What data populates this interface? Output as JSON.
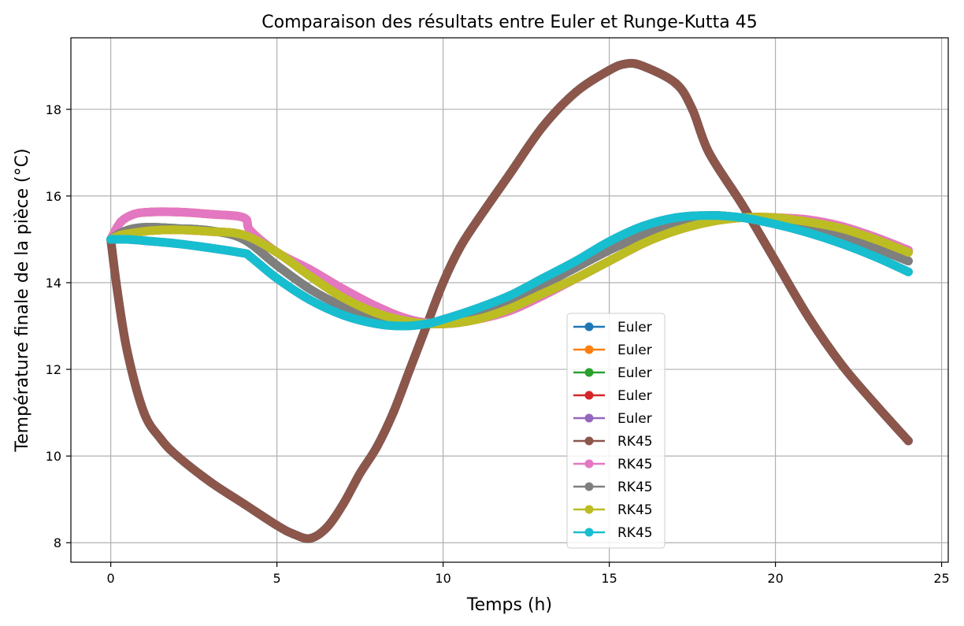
{
  "chart_data": {
    "type": "line",
    "title": "Comparaison des résultats entre Euler et Runge-Kutta 45",
    "xlabel": "Temps (h)",
    "ylabel": "Température finale de la pièce (°C)",
    "xlim": [
      -1.2,
      25.2
    ],
    "ylim": [
      7.55,
      19.65
    ],
    "xticks": [
      0,
      5,
      10,
      15,
      20,
      25
    ],
    "yticks": [
      8,
      10,
      12,
      14,
      16,
      18
    ],
    "grid": true,
    "legend_position": "lower center",
    "series": [
      {
        "name": "Euler",
        "color": "#1f77b4",
        "x": [
          0,
          0.2,
          0.5,
          1,
          1.5,
          2,
          3,
          4,
          5,
          5.5,
          6,
          6.5,
          7,
          7.5,
          8,
          8.5,
          9,
          9.5,
          10,
          10.5,
          11,
          12,
          13,
          14,
          15,
          15.5,
          16,
          17,
          17.5,
          18,
          19,
          20,
          21,
          22,
          23,
          24
        ],
        "y": [
          15.0,
          13.8,
          12.4,
          11.0,
          10.4,
          10.0,
          9.4,
          8.9,
          8.4,
          8.2,
          8.1,
          8.35,
          8.9,
          9.6,
          10.2,
          11.0,
          12.0,
          13.0,
          14.0,
          14.8,
          15.4,
          16.5,
          17.6,
          18.4,
          18.9,
          19.05,
          19.0,
          18.6,
          18.0,
          17.0,
          15.8,
          14.5,
          13.2,
          12.1,
          11.2,
          10.35
        ]
      },
      {
        "name": "Euler",
        "color": "#ff7f0e",
        "x": [
          0,
          0.3,
          0.7,
          1.2,
          2,
          3,
          4,
          4.2,
          5,
          6,
          7,
          8,
          9,
          10,
          11,
          12,
          13,
          14,
          15,
          16,
          17,
          18,
          19,
          20,
          21,
          22,
          23,
          24
        ],
        "y": [
          15.0,
          15.4,
          15.58,
          15.63,
          15.63,
          15.58,
          15.5,
          15.2,
          14.7,
          14.3,
          13.85,
          13.45,
          13.15,
          13.05,
          13.15,
          13.35,
          13.7,
          14.1,
          14.5,
          14.9,
          15.25,
          15.45,
          15.5,
          15.5,
          15.45,
          15.3,
          15.05,
          14.75
        ]
      },
      {
        "name": "Euler",
        "color": "#2ca02c",
        "x": [
          0,
          0.3,
          0.7,
          1.2,
          2,
          3,
          4,
          5,
          6,
          7,
          8,
          9,
          10,
          11,
          12,
          13,
          14,
          15,
          16,
          17,
          18,
          19,
          20,
          21,
          22,
          23,
          24
        ],
        "y": [
          15.0,
          15.15,
          15.25,
          15.28,
          15.25,
          15.2,
          15.0,
          14.4,
          13.85,
          13.45,
          13.2,
          13.05,
          13.1,
          13.3,
          13.6,
          13.95,
          14.35,
          14.75,
          15.1,
          15.4,
          15.55,
          15.5,
          15.45,
          15.3,
          15.05,
          14.8,
          14.5
        ]
      },
      {
        "name": "Euler",
        "color": "#d62728",
        "x": [
          0,
          0.3,
          0.7,
          1.2,
          2,
          3,
          4,
          5,
          6,
          7,
          8,
          9,
          10,
          11,
          12,
          13,
          14,
          15,
          16,
          17,
          18,
          19,
          20,
          21,
          22,
          23,
          24
        ],
        "y": [
          15.0,
          15.1,
          15.15,
          15.2,
          15.22,
          15.18,
          15.1,
          14.7,
          14.15,
          13.65,
          13.3,
          13.1,
          13.05,
          13.15,
          13.4,
          13.75,
          14.1,
          14.5,
          14.9,
          15.2,
          15.4,
          15.5,
          15.5,
          15.4,
          15.25,
          15.0,
          14.7
        ]
      },
      {
        "name": "Euler",
        "color": "#9467bd",
        "x": [
          0,
          0.5,
          1,
          2,
          3,
          4,
          4.2,
          5,
          6,
          7,
          8,
          8.8,
          9.5,
          10,
          11,
          12,
          13,
          14,
          15,
          16,
          17,
          18,
          19,
          20,
          21,
          22,
          23,
          24
        ],
        "y": [
          15.0,
          15.0,
          14.97,
          14.9,
          14.8,
          14.68,
          14.6,
          14.1,
          13.6,
          13.25,
          13.05,
          13.0,
          13.05,
          13.15,
          13.4,
          13.7,
          14.1,
          14.5,
          14.95,
          15.3,
          15.5,
          15.55,
          15.5,
          15.35,
          15.15,
          14.9,
          14.6,
          14.25
        ]
      },
      {
        "name": "RK45",
        "color": "#8c564b",
        "x": [
          0,
          0.2,
          0.5,
          1,
          1.5,
          2,
          3,
          4,
          5,
          5.5,
          6,
          6.5,
          7,
          7.5,
          8,
          8.5,
          9,
          9.5,
          10,
          10.5,
          11,
          12,
          13,
          14,
          15,
          15.5,
          16,
          17,
          17.5,
          18,
          19,
          20,
          21,
          22,
          23,
          24
        ],
        "y": [
          15.0,
          13.8,
          12.4,
          11.0,
          10.4,
          10.0,
          9.4,
          8.9,
          8.4,
          8.2,
          8.1,
          8.35,
          8.9,
          9.6,
          10.2,
          11.0,
          12.0,
          13.0,
          14.0,
          14.8,
          15.4,
          16.5,
          17.6,
          18.4,
          18.9,
          19.05,
          19.0,
          18.6,
          18.0,
          17.0,
          15.8,
          14.5,
          13.2,
          12.1,
          11.2,
          10.35
        ]
      },
      {
        "name": "RK45",
        "color": "#e377c2",
        "x": [
          0,
          0.3,
          0.7,
          1.2,
          2,
          3,
          4,
          4.2,
          5,
          6,
          7,
          8,
          9,
          10,
          11,
          12,
          13,
          14,
          15,
          16,
          17,
          18,
          19,
          20,
          21,
          22,
          23,
          24
        ],
        "y": [
          15.0,
          15.4,
          15.58,
          15.63,
          15.63,
          15.58,
          15.5,
          15.2,
          14.7,
          14.3,
          13.85,
          13.45,
          13.15,
          13.05,
          13.15,
          13.35,
          13.7,
          14.1,
          14.5,
          14.9,
          15.25,
          15.45,
          15.5,
          15.5,
          15.45,
          15.3,
          15.05,
          14.75
        ]
      },
      {
        "name": "RK45",
        "color": "#7f7f7f",
        "x": [
          0,
          0.3,
          0.7,
          1.2,
          2,
          3,
          4,
          5,
          6,
          7,
          8,
          9,
          10,
          11,
          12,
          13,
          14,
          15,
          16,
          17,
          18,
          19,
          20,
          21,
          22,
          23,
          24
        ],
        "y": [
          15.0,
          15.15,
          15.25,
          15.28,
          15.25,
          15.2,
          15.0,
          14.4,
          13.85,
          13.45,
          13.2,
          13.05,
          13.1,
          13.3,
          13.6,
          13.95,
          14.35,
          14.75,
          15.1,
          15.4,
          15.55,
          15.5,
          15.45,
          15.3,
          15.05,
          14.8,
          14.5
        ]
      },
      {
        "name": "RK45",
        "color": "#bcbd22",
        "x": [
          0,
          0.3,
          0.7,
          1.2,
          2,
          3,
          4,
          5,
          6,
          7,
          8,
          9,
          10,
          11,
          12,
          13,
          14,
          15,
          16,
          17,
          18,
          19,
          20,
          21,
          22,
          23,
          24
        ],
        "y": [
          15.0,
          15.1,
          15.15,
          15.2,
          15.22,
          15.18,
          15.1,
          14.7,
          14.15,
          13.65,
          13.3,
          13.1,
          13.05,
          13.15,
          13.4,
          13.75,
          14.1,
          14.5,
          14.9,
          15.2,
          15.4,
          15.5,
          15.5,
          15.4,
          15.25,
          15.0,
          14.7
        ]
      },
      {
        "name": "RK45",
        "color": "#17becf",
        "x": [
          0,
          0.5,
          1,
          2,
          3,
          4,
          4.2,
          5,
          6,
          7,
          8,
          8.8,
          9.5,
          10,
          11,
          12,
          13,
          14,
          15,
          16,
          17,
          18,
          19,
          20,
          21,
          22,
          23,
          24
        ],
        "y": [
          15.0,
          15.0,
          14.97,
          14.9,
          14.8,
          14.68,
          14.6,
          14.1,
          13.6,
          13.25,
          13.05,
          13.0,
          13.05,
          13.15,
          13.4,
          13.7,
          14.1,
          14.5,
          14.95,
          15.3,
          15.5,
          15.55,
          15.5,
          15.35,
          15.15,
          14.9,
          14.6,
          14.25
        ]
      }
    ]
  }
}
